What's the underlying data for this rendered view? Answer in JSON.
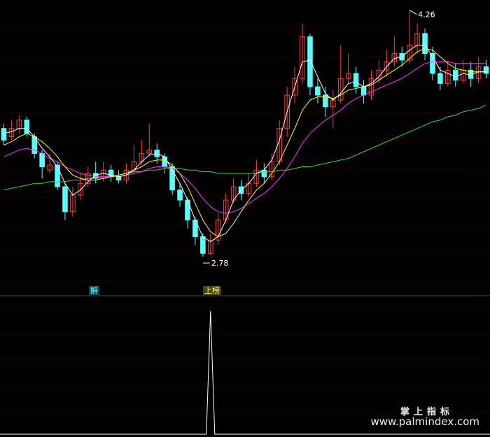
{
  "chart_data": {
    "type": "candlestick",
    "price_range": [
      2.6,
      4.3
    ],
    "high_label": "4.26",
    "low_label": "2.78",
    "price_high": 4.26,
    "price_low": 2.78,
    "candles": [
      [
        3.55,
        3.48,
        3.58,
        3.45
      ],
      [
        3.5,
        3.55,
        3.6,
        3.48
      ],
      [
        3.55,
        3.6,
        3.63,
        3.52
      ],
      [
        3.6,
        3.52,
        3.62,
        3.5
      ],
      [
        3.5,
        3.4,
        3.52,
        3.37
      ],
      [
        3.4,
        3.32,
        3.42,
        3.25
      ],
      [
        3.3,
        3.33,
        3.4,
        3.28
      ],
      [
        3.33,
        3.2,
        3.35,
        3.18
      ],
      [
        3.2,
        3.05,
        3.22,
        3.0
      ],
      [
        3.05,
        3.15,
        3.2,
        3.02
      ],
      [
        3.15,
        3.22,
        3.28,
        3.12
      ],
      [
        3.22,
        3.28,
        3.32,
        3.2
      ],
      [
        3.28,
        3.25,
        3.35,
        3.22
      ],
      [
        3.25,
        3.3,
        3.35,
        3.23
      ],
      [
        3.3,
        3.26,
        3.33,
        3.23
      ],
      [
        3.26,
        3.24,
        3.3,
        3.22
      ],
      [
        3.24,
        3.3,
        3.34,
        3.22
      ],
      [
        3.3,
        3.35,
        3.45,
        3.28
      ],
      [
        3.35,
        3.4,
        3.48,
        3.33
      ],
      [
        3.4,
        3.42,
        3.58,
        3.38
      ],
      [
        3.42,
        3.38,
        3.46,
        3.34
      ],
      [
        3.38,
        3.32,
        3.4,
        3.28
      ],
      [
        3.32,
        3.18,
        3.34,
        3.15
      ],
      [
        3.18,
        3.12,
        3.22,
        3.08
      ],
      [
        3.12,
        3.0,
        3.14,
        2.95
      ],
      [
        3.0,
        2.9,
        3.02,
        2.85
      ],
      [
        2.9,
        2.8,
        2.92,
        2.78
      ],
      [
        2.8,
        2.88,
        2.92,
        2.79
      ],
      [
        2.88,
        3.0,
        3.04,
        2.85
      ],
      [
        3.0,
        3.12,
        3.16,
        2.98
      ],
      [
        3.12,
        3.2,
        3.25,
        3.1
      ],
      [
        3.2,
        3.16,
        3.24,
        3.12
      ],
      [
        3.16,
        3.22,
        3.28,
        3.14
      ],
      [
        3.22,
        3.3,
        3.36,
        3.2
      ],
      [
        3.3,
        3.26,
        3.34,
        3.22
      ],
      [
        3.26,
        3.35,
        3.4,
        3.24
      ],
      [
        3.35,
        3.55,
        3.6,
        3.33
      ],
      [
        3.55,
        3.75,
        3.8,
        3.5
      ],
      [
        3.75,
        3.85,
        3.92,
        3.7
      ],
      [
        3.85,
        4.1,
        4.18,
        3.82
      ],
      [
        4.1,
        3.8,
        4.12,
        3.75
      ],
      [
        3.8,
        3.75,
        3.85,
        3.7
      ],
      [
        3.75,
        3.68,
        3.8,
        3.62
      ],
      [
        3.68,
        3.72,
        3.78,
        3.55
      ],
      [
        3.72,
        3.85,
        4.05,
        3.7
      ],
      [
        3.85,
        3.88,
        4.0,
        3.82
      ],
      [
        3.88,
        3.8,
        3.92,
        3.76
      ],
      [
        3.8,
        3.75,
        3.84,
        3.7
      ],
      [
        3.75,
        3.85,
        3.9,
        3.72
      ],
      [
        3.85,
        3.9,
        3.96,
        3.82
      ],
      [
        3.9,
        3.95,
        4.02,
        3.86
      ],
      [
        3.95,
        4.0,
        4.1,
        3.92
      ],
      [
        4.0,
        3.96,
        4.04,
        3.92
      ],
      [
        3.96,
        4.05,
        4.26,
        3.94
      ],
      [
        4.05,
        4.12,
        4.18,
        4.0
      ],
      [
        4.12,
        4.0,
        4.15,
        3.96
      ],
      [
        4.0,
        3.88,
        4.04,
        3.84
      ],
      [
        3.88,
        3.82,
        3.92,
        3.78
      ],
      [
        3.82,
        3.9,
        3.96,
        3.8
      ],
      [
        3.9,
        3.84,
        3.94,
        3.8
      ],
      [
        3.84,
        3.9,
        3.96,
        3.82
      ],
      [
        3.9,
        3.85,
        3.95,
        3.8
      ],
      [
        3.85,
        3.92,
        3.98,
        3.82
      ],
      [
        3.92,
        3.88,
        3.96,
        3.85
      ]
    ],
    "ma_white": [
      3.52,
      3.53,
      3.55,
      3.55,
      3.5,
      3.43,
      3.38,
      3.32,
      3.22,
      3.15,
      3.18,
      3.23,
      3.27,
      3.28,
      3.27,
      3.26,
      3.27,
      3.3,
      3.35,
      3.39,
      3.4,
      3.38,
      3.3,
      3.22,
      3.12,
      3.0,
      2.9,
      2.87,
      2.9,
      3.0,
      3.12,
      3.18,
      3.22,
      3.28,
      3.3,
      3.36,
      3.48,
      3.65,
      3.8,
      3.95,
      3.96,
      3.86,
      3.76,
      3.72,
      3.76,
      3.82,
      3.83,
      3.8,
      3.82,
      3.86,
      3.92,
      3.97,
      3.98,
      4.02,
      4.05,
      4.05,
      3.98,
      3.9,
      3.88,
      3.86,
      3.88,
      3.87,
      3.89,
      3.89
    ],
    "ma_yellow": [
      3.45,
      3.47,
      3.5,
      3.52,
      3.5,
      3.47,
      3.43,
      3.38,
      3.32,
      3.27,
      3.25,
      3.24,
      3.24,
      3.25,
      3.26,
      3.27,
      3.28,
      3.3,
      3.32,
      3.35,
      3.36,
      3.36,
      3.33,
      3.28,
      3.2,
      3.1,
      3.0,
      2.93,
      2.9,
      2.92,
      2.98,
      3.05,
      3.12,
      3.18,
      3.22,
      3.28,
      3.35,
      3.45,
      3.55,
      3.66,
      3.72,
      3.74,
      3.74,
      3.73,
      3.75,
      3.78,
      3.79,
      3.8,
      3.81,
      3.84,
      3.87,
      3.9,
      3.93,
      3.97,
      4.01,
      4.03,
      4.02,
      3.98,
      3.94,
      3.91,
      3.9,
      3.89,
      3.89,
      3.89
    ],
    "ma_magenta": [
      3.38,
      3.4,
      3.42,
      3.43,
      3.42,
      3.4,
      3.37,
      3.35,
      3.32,
      3.3,
      3.28,
      3.27,
      3.26,
      3.26,
      3.26,
      3.26,
      3.27,
      3.28,
      3.29,
      3.31,
      3.32,
      3.32,
      3.31,
      3.28,
      3.24,
      3.19,
      3.13,
      3.08,
      3.05,
      3.04,
      3.05,
      3.07,
      3.1,
      3.13,
      3.16,
      3.2,
      3.25,
      3.31,
      3.38,
      3.46,
      3.52,
      3.56,
      3.6,
      3.63,
      3.66,
      3.7,
      3.73,
      3.75,
      3.77,
      3.79,
      3.81,
      3.83,
      3.85,
      3.88,
      3.91,
      3.94,
      3.95,
      3.95,
      3.95,
      3.94,
      3.94,
      3.94,
      3.94,
      3.94
    ],
    "ma_green": [
      3.18,
      3.19,
      3.2,
      3.21,
      3.22,
      3.22,
      3.23,
      3.23,
      3.23,
      3.24,
      3.24,
      3.25,
      3.25,
      3.26,
      3.26,
      3.27,
      3.28,
      3.29,
      3.29,
      3.3,
      3.3,
      3.31,
      3.31,
      3.31,
      3.3,
      3.3,
      3.29,
      3.29,
      3.28,
      3.28,
      3.28,
      3.28,
      3.28,
      3.28,
      3.29,
      3.29,
      3.3,
      3.3,
      3.31,
      3.32,
      3.32,
      3.33,
      3.34,
      3.35,
      3.36,
      3.37,
      3.39,
      3.41,
      3.43,
      3.45,
      3.47,
      3.49,
      3.51,
      3.53,
      3.55,
      3.57,
      3.59,
      3.6,
      3.62,
      3.63,
      3.65,
      3.66,
      3.67,
      3.69
    ],
    "signal_index": 27,
    "labels": {
      "sell_tag": "解",
      "buy_tag": "上榜"
    }
  },
  "watermark": {
    "line1": "掌上指标",
    "line2": "www.palmindex.com"
  },
  "colors": {
    "up": "#ff3b3b",
    "down": "#54ffff",
    "white_ma": "#ffffff",
    "yellow_ma": "#ffff00",
    "magenta_ma": "#ff33ff",
    "green_ma": "#33dd33",
    "grid": "#5a0000"
  }
}
